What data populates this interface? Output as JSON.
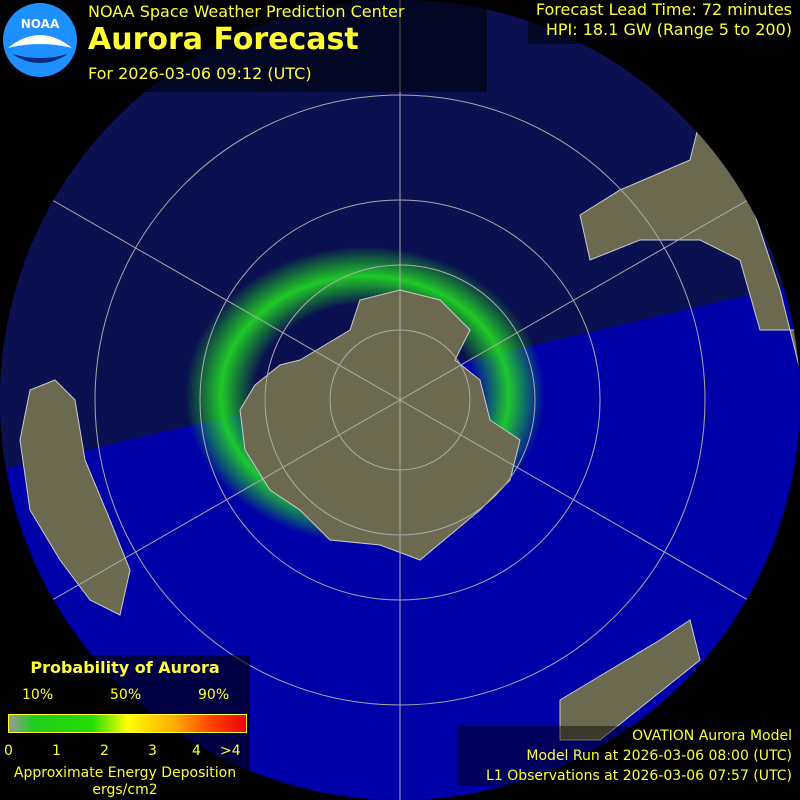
{
  "header": {
    "org": "NOAA Space Weather Prediction Center",
    "title": "Aurora Forecast",
    "forecast_for": "For 2026-03-06 09:12 (UTC)",
    "logo_text": "NOAA"
  },
  "info": {
    "lead_time": "Forecast Lead Time:  72 minutes",
    "hpi": "HPI:  18.1 GW (Range 5 to 200)"
  },
  "legend": {
    "title": "Probability of Aurora",
    "percent_labels": [
      "10%",
      "50%",
      "90%"
    ],
    "scale_labels": [
      "0",
      "1",
      "2",
      "3",
      "4",
      ">4"
    ],
    "subtitle": "Approximate Energy Deposition",
    "units": "ergs/cm2"
  },
  "footer": {
    "model": "OVATION Aurora Model",
    "model_run": "Model Run at 2026-03-06 08:00 (UTC)",
    "observations": "L1 Observations at 2026-03-06 07:57 (UTC)"
  },
  "colors": {
    "text": "#ffff33",
    "ocean_day": "#0000a8",
    "ocean_night": "#0a1050",
    "land": "#6b6a50",
    "aurora": "#22dd22"
  },
  "map": {
    "hemisphere": "south",
    "projection": "polar"
  }
}
